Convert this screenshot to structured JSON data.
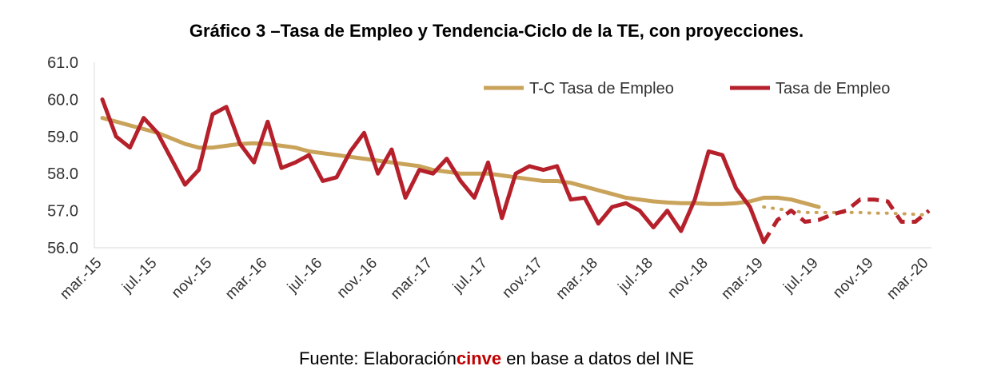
{
  "title": "Gráfico 3 –Tasa de Empleo y Tendencia-Ciclo de la TE, con proyecciones.",
  "source": {
    "prefix": "Fuente: Elaboración",
    "brand": "cinve",
    "suffix": " en base a datos del INE"
  },
  "chart_data": {
    "type": "line",
    "xlabel": "",
    "ylabel": "",
    "ylim": [
      56.0,
      61.0
    ],
    "yticks": [
      "56.0",
      "57.0",
      "58.0",
      "59.0",
      "60.0",
      "61.0"
    ],
    "x_tick_labels": [
      "mar.-15",
      "jul.-15",
      "nov.-15",
      "mar.-16",
      "jul.-16",
      "nov.-16",
      "mar.-17",
      "jul.-17",
      "nov.-17",
      "mar.-18",
      "jul.-18",
      "nov.-18",
      "mar.-19",
      "jul.-19",
      "nov.-19",
      "mar.-20"
    ],
    "grid": false,
    "legend_position": "top-right",
    "colors": {
      "tc": "#c9a35a",
      "te": "#b5202b"
    },
    "series": [
      {
        "name": "T-C Tasa de Empleo",
        "start": "mar.-15",
        "values": [
          59.5,
          59.4,
          59.3,
          59.2,
          59.1,
          58.95,
          58.8,
          58.7,
          58.7,
          58.75,
          58.8,
          58.82,
          58.8,
          58.75,
          58.7,
          58.6,
          58.55,
          58.5,
          58.45,
          58.4,
          58.35,
          58.3,
          58.25,
          58.2,
          58.1,
          58.05,
          58.0,
          58.0,
          58.0,
          57.95,
          57.9,
          57.85,
          57.8,
          57.8,
          57.75,
          57.65,
          57.55,
          57.45,
          57.35,
          57.3,
          57.25,
          57.22,
          57.2,
          57.2,
          57.18,
          57.18,
          57.2,
          57.25,
          57.35,
          57.35,
          57.3,
          57.2,
          57.1
        ]
      },
      {
        "name": "T-C Tasa de Empleo (proyección)",
        "start": "mar.-19",
        "values": [
          57.1,
          57.05,
          57.0,
          56.95,
          56.95,
          56.95,
          56.95,
          56.95,
          56.93,
          56.93,
          56.92,
          56.9,
          56.88
        ]
      },
      {
        "name": "Tasa de Empleo",
        "start": "mar.-15",
        "values": [
          60.0,
          59.0,
          58.7,
          59.5,
          59.1,
          58.4,
          57.7,
          58.1,
          59.6,
          59.8,
          58.8,
          58.3,
          59.4,
          58.15,
          58.3,
          58.5,
          57.8,
          57.9,
          58.6,
          59.1,
          58.0,
          58.65,
          57.35,
          58.1,
          58.0,
          58.4,
          57.8,
          57.35,
          58.3,
          56.8,
          58.0,
          58.2,
          58.1,
          58.2,
          57.3,
          57.35,
          56.65,
          57.1,
          57.2,
          57.0,
          56.55,
          57.0,
          56.45,
          57.3,
          58.6,
          58.5,
          57.6,
          57.1,
          56.15
        ]
      },
      {
        "name": "Tasa de Empleo (proyección)",
        "start": "mar.-19",
        "values": [
          56.15,
          56.75,
          57.0,
          56.7,
          56.75,
          56.9,
          57.0,
          57.3,
          57.3,
          57.25,
          56.7,
          56.7,
          57.0
        ]
      }
    ],
    "legend": [
      "T-C Tasa de Empleo",
      "Tasa de Empleo"
    ]
  }
}
